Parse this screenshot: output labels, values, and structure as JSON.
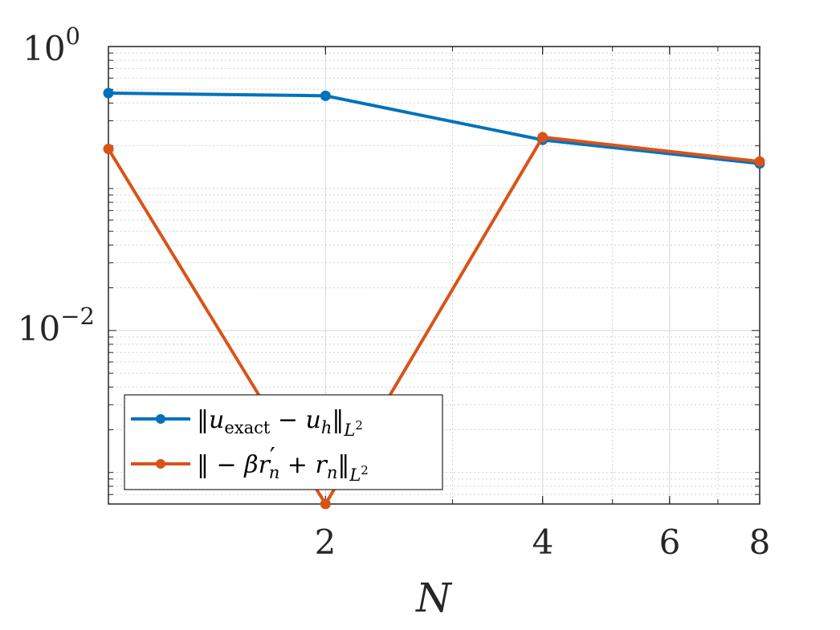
{
  "chart_data": {
    "type": "line",
    "xscale": "log",
    "yscale": "log",
    "xlabel": "N",
    "ylabel": "",
    "title": "",
    "xlim": [
      1,
      8
    ],
    "ylim": [
      0.0006,
      1
    ],
    "xticks": [
      {
        "value": 2,
        "label": "2"
      },
      {
        "value": 4,
        "label": "4"
      },
      {
        "value": 6,
        "label": "6"
      },
      {
        "value": 8,
        "label": "8"
      }
    ],
    "yticks": [
      {
        "value": 1,
        "base": "10",
        "exp": "0"
      },
      {
        "value": 0.01,
        "base": "10",
        "exp": "−2"
      }
    ],
    "grid": true,
    "minor_grid": true,
    "legend_position": "bottom-left",
    "series": [
      {
        "id": "s1",
        "name": "‖u_exact − u_h‖_L2",
        "color": "#0072BD",
        "x": [
          1,
          2,
          4,
          8
        ],
        "y": [
          0.47,
          0.45,
          0.22,
          0.15
        ]
      },
      {
        "id": "s2",
        "name": "‖ − βr′_n + r_n‖_L2",
        "color": "#D95319",
        "x": [
          1,
          2,
          4,
          8
        ],
        "y": [
          0.19,
          0.0006,
          0.23,
          0.155
        ]
      }
    ],
    "legend": {
      "entry1": {
        "norm": "‖",
        "u": "u",
        "sub_exact": "exact",
        "minus": " − ",
        "u2": "u",
        "sub_h": "h",
        "norm_end": "‖",
        "L": "L",
        "two": "2"
      },
      "entry2": {
        "norm": "‖",
        "minus": " − ",
        "beta": "β",
        "r": "r",
        "prime": "′",
        "sub_n": "n",
        "plus": " + ",
        "r2": "r",
        "sub_n2": "n",
        "norm_end": "‖",
        "L": "L",
        "two": "2"
      }
    }
  }
}
